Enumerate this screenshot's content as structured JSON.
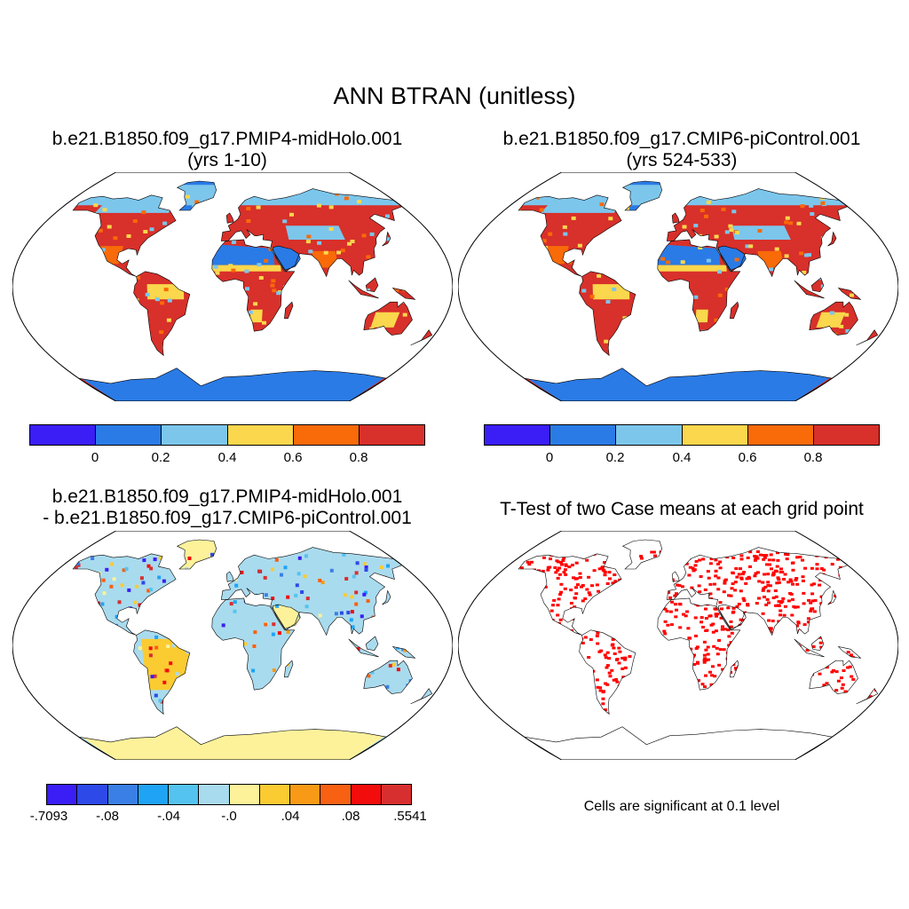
{
  "figure": {
    "title": "ANN BTRAN (unitless)"
  },
  "panels": {
    "top_left": {
      "title_line1": "b.e21.B1850.f09_g17.PMIP4-midHolo.001",
      "title_line2": "(yrs 1-10)"
    },
    "top_right": {
      "title_line1": "b.e21.B1850.f09_g17.CMIP6-piControl.001",
      "title_line2": "(yrs 524-533)"
    },
    "bottom_left": {
      "title_line1": "b.e21.B1850.f09_g17.PMIP4-midHolo.001",
      "title_line2": "- b.e21.B1850.f09_g17.CMIP6-piControl.001"
    },
    "bottom_right": {
      "title_line1": "T-Test of two Case means at each grid point",
      "note": "Cells are significant at 0.1 level"
    }
  },
  "colorbars": {
    "abs": {
      "colors": [
        "#3a1ef5",
        "#2a7be6",
        "#7cc6ec",
        "#fad74c",
        "#f96a08",
        "#d8302a"
      ],
      "ticks": [
        "0",
        "0.2",
        "0.4",
        "0.6",
        "0.8"
      ]
    },
    "diff": {
      "colors": [
        "#3a1ef5",
        "#2d49e8",
        "#3a7fe6",
        "#1fa3f4",
        "#55c3ef",
        "#a9dbee",
        "#fdf29a",
        "#fbcb32",
        "#f99a16",
        "#f86012",
        "#f20c0c",
        "#d72f2f"
      ],
      "ticks": [
        "-.7093",
        "-.08",
        "-.04",
        "-.0",
        ".04",
        ".08",
        ".5541"
      ]
    }
  },
  "chart_data": [
    {
      "type": "heatmap",
      "title": "b.e21.B1850.f09_g17.PMIP4-midHolo.001 (yrs 1-10)",
      "variable": "ANN BTRAN (unitless)",
      "projection": "Robinson",
      "color_levels": [
        0,
        0.2,
        0.4,
        0.6,
        0.8
      ],
      "dominant_values": {
        "high_latitudes": "0.2",
        "deserts": "0.2",
        "tropics_midlatitudes": "0.8"
      }
    },
    {
      "type": "heatmap",
      "title": "b.e21.B1850.f09_g17.CMIP6-piControl.001 (yrs 524-533)",
      "variable": "ANN BTRAN (unitless)",
      "projection": "Robinson",
      "color_levels": [
        0,
        0.2,
        0.4,
        0.6,
        0.8
      ],
      "dominant_values": {
        "high_latitudes": "0.2",
        "deserts": "0.2",
        "tropics_midlatitudes": "0.8"
      }
    },
    {
      "type": "heatmap",
      "title": "b.e21.B1850.f09_g17.PMIP4-midHolo.001 - b.e21.B1850.f09_g17.CMIP6-piControl.001",
      "projection": "Robinson",
      "color_levels": [
        -0.7093,
        -0.08,
        -0.04,
        0.0,
        0.04,
        0.08,
        0.5541
      ],
      "range": [
        -0.7093,
        0.5541
      ]
    },
    {
      "type": "heatmap",
      "title": "T-Test of two Case means at each grid point",
      "projection": "Robinson",
      "significance_level": 0.1,
      "significant_color": "#ff0000"
    }
  ]
}
